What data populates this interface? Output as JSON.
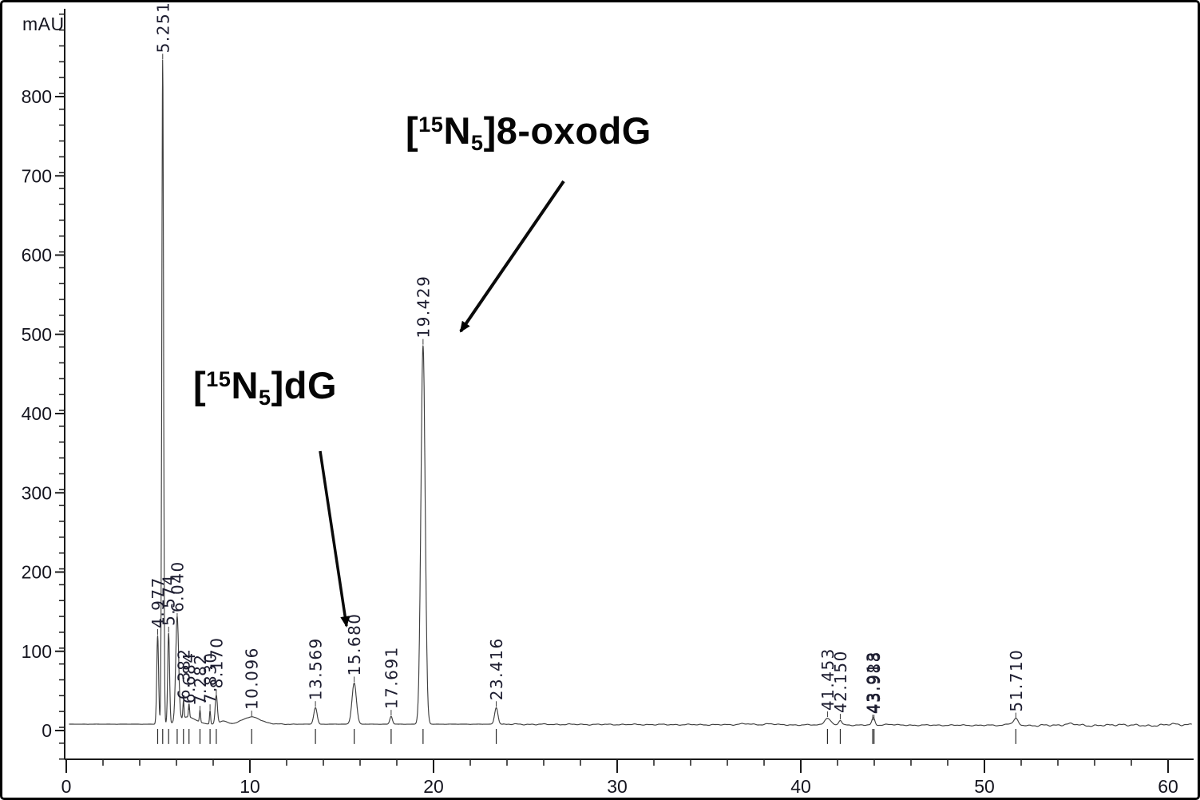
{
  "annotations": {
    "oxodG": {
      "bracket_open": "[",
      "isotope": "15",
      "element": "N",
      "atom_count": "5",
      "suffix": "]8-oxodG",
      "target_rt": 19.429
    },
    "dG": {
      "bracket_open": "[",
      "isotope": "15",
      "element": "N",
      "atom_count": "5",
      "suffix": "]dG",
      "target_rt": 15.68
    }
  },
  "chart_data": {
    "type": "line",
    "title": "",
    "xlabel": "",
    "ylabel": "mAU",
    "xlim": [
      0,
      61.5
    ],
    "ylim": [
      -36,
      905
    ],
    "x_ticks": [
      0,
      10,
      20,
      30,
      40,
      50,
      60
    ],
    "x_minor_tick_step": 2,
    "y_ticks": [
      0,
      100,
      200,
      300,
      400,
      500,
      600,
      700,
      800
    ],
    "y_minor_tick_step": 20,
    "grid": false,
    "legend": "none",
    "baseline_mau": 8,
    "peaks": [
      {
        "rt": 4.977,
        "label": "4.977",
        "height_mau": 112,
        "width_min": 0.05
      },
      {
        "rt": 5.251,
        "label": "5.251",
        "height_mau": 838,
        "width_min": 0.048
      },
      {
        "rt": 5.574,
        "label": "5.574",
        "height_mau": 115,
        "width_min": 0.05
      },
      {
        "rt": 6.04,
        "label": "6.040",
        "height_mau": 132,
        "width_min": 0.08
      },
      {
        "rt": 6.382,
        "label": "6.382",
        "height_mau": 22,
        "width_min": 0.03
      },
      {
        "rt": 6.684,
        "label": "6.684",
        "height_mau": 17,
        "width_min": 0.03
      },
      {
        "rt": 7.282,
        "label": "7.282",
        "height_mau": 15,
        "width_min": 0.03
      },
      {
        "rt": 7.83,
        "label": "7.830",
        "height_mau": 17,
        "width_min": 0.03
      },
      {
        "rt": 8.17,
        "label": "8.170",
        "height_mau": 36,
        "width_min": 0.06
      },
      {
        "rt": 10.096,
        "label": "10.096",
        "height_mau": 9,
        "width_min": 0.5
      },
      {
        "rt": 13.569,
        "label": "13.569",
        "height_mau": 21,
        "width_min": 0.09
      },
      {
        "rt": 15.68,
        "label": "15.680",
        "height_mau": 52,
        "width_min": 0.12
      },
      {
        "rt": 17.691,
        "label": "17.691",
        "height_mau": 10,
        "width_min": 0.07
      },
      {
        "rt": 19.429,
        "label": "19.429",
        "height_mau": 478,
        "width_min": 0.115
      },
      {
        "rt": 23.416,
        "label": "23.416",
        "height_mau": 21,
        "width_min": 0.09
      },
      {
        "rt": 41.453,
        "label": "41.453",
        "height_mau": 9,
        "width_min": 0.16
      },
      {
        "rt": 42.15,
        "label": "42.150",
        "height_mau": 6,
        "width_min": 0.08
      },
      {
        "rt": 43.913,
        "label": "43.913",
        "height_mau": 5,
        "width_min": 0.07
      },
      {
        "rt": 43.988,
        "label": "43.988",
        "height_mau": 5,
        "width_min": 0.07
      },
      {
        "rt": 51.71,
        "label": "51.710",
        "height_mau": 8,
        "width_min": 0.12
      }
    ]
  }
}
